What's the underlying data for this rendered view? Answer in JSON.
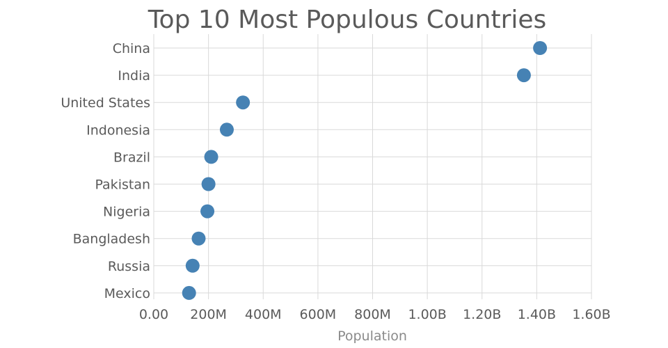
{
  "chart_data": {
    "type": "scatter",
    "title": "Top 10 Most Populous Countries",
    "xlabel": "Population",
    "ylabel": "",
    "xlim": [
      0,
      1600000000
    ],
    "x_ticks": [
      {
        "value": 0,
        "label": "0.00"
      },
      {
        "value": 200000000,
        "label": "200M"
      },
      {
        "value": 400000000,
        "label": "400M"
      },
      {
        "value": 600000000,
        "label": "600M"
      },
      {
        "value": 800000000,
        "label": "800M"
      },
      {
        "value": 1000000000,
        "label": "1.00B"
      },
      {
        "value": 1200000000,
        "label": "1.20B"
      },
      {
        "value": 1400000000,
        "label": "1.40B"
      },
      {
        "value": 1600000000,
        "label": "1.60B"
      }
    ],
    "categories": [
      "China",
      "India",
      "United States",
      "Indonesia",
      "Brazil",
      "Pakistan",
      "Nigeria",
      "Bangladesh",
      "Russia",
      "Mexico"
    ],
    "values": [
      1412000000,
      1353000000,
      326000000,
      267000000,
      210000000,
      200000000,
      196000000,
      164000000,
      142000000,
      129000000
    ],
    "marker_color": "#4682b4",
    "grid": true
  }
}
